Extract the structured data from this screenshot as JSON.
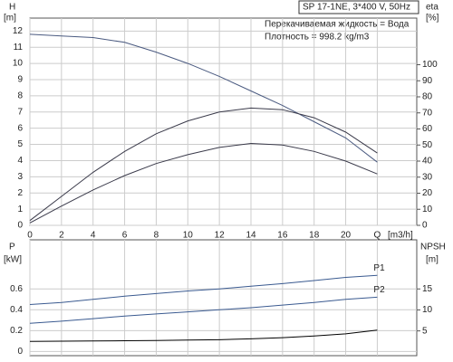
{
  "chart_data": [
    {
      "type": "line",
      "ylabel": "H",
      "yunit": "[m]",
      "y2label": "eta",
      "y2unit": "[%]",
      "info_box": "SP 17-1NE, 3*400 V, 50Hz",
      "notes": [
        "Перекачиваемая жидкость = Вода",
        "Плотность = 998.2 kg/m3"
      ],
      "xunit": "[m3/h]",
      "x": [
        0,
        2,
        4,
        6,
        8,
        10,
        12,
        14,
        16,
        18,
        20,
        22
      ],
      "xlim": [
        0,
        24.5
      ],
      "xticks": [
        0,
        2,
        4,
        6,
        8,
        10,
        12,
        14,
        16,
        18,
        20,
        {
          "value": 22,
          "label": "Q"
        }
      ],
      "ylim": [
        0,
        12.8
      ],
      "yticks": [
        0,
        1,
        2,
        3,
        4,
        5,
        6,
        7,
        8,
        9,
        10,
        11,
        12
      ],
      "y2lim": [
        0,
        129
      ],
      "y2ticks": [
        0,
        10,
        20,
        30,
        40,
        50,
        60,
        70,
        80,
        90,
        100
      ],
      "grid": true,
      "series": [
        {
          "color": "#4a5a80",
          "values": [
            11.8,
            11.7,
            11.6,
            11.3,
            10.7,
            10,
            9.2,
            8.3,
            7.4,
            6.4,
            5.4,
            3.9
          ]
        },
        {
          "color": "#3a3a4a",
          "axis": "y2",
          "values": [
            3,
            18,
            33,
            46,
            57,
            65,
            70.5,
            73,
            72,
            67,
            58,
            45
          ]
        },
        {
          "color": "#3a3a4a",
          "axis": "y2",
          "values": [
            1.5,
            12,
            22,
            31,
            38.5,
            44,
            48.5,
            51,
            50,
            46,
            40,
            32
          ]
        }
      ]
    },
    {
      "type": "line",
      "ylabel": "P",
      "yunit": "[kW]",
      "y2label": "NPSH",
      "y2unit": "[m]",
      "x": [
        0,
        2,
        4,
        6,
        8,
        10,
        12,
        14,
        16,
        18,
        20,
        22
      ],
      "xlim": [
        0,
        24.5
      ],
      "ylim": [
        -0.04,
        1.07
      ],
      "yticks": [
        0,
        0.2,
        0.4,
        0.6
      ],
      "y2lim": [
        -0.9,
        26.7
      ],
      "y2ticks": [
        5,
        10,
        15
      ],
      "grid": true,
      "series": [
        {
          "name": "P1",
          "color": "#3a5a90",
          "values": [
            0.45,
            0.47,
            0.5,
            0.53,
            0.555,
            0.58,
            0.6,
            0.625,
            0.65,
            0.68,
            0.71,
            0.73
          ]
        },
        {
          "name": "P2",
          "color": "#3a5a90",
          "values": [
            0.27,
            0.29,
            0.315,
            0.34,
            0.36,
            0.38,
            0.4,
            0.42,
            0.445,
            0.47,
            0.5,
            0.52
          ]
        },
        {
          "color": "#000000",
          "axis": "y2",
          "values": [
            2.5,
            2.55,
            2.6,
            2.65,
            2.7,
            2.8,
            2.9,
            3.1,
            3.4,
            3.8,
            4.3,
            5.2
          ]
        }
      ]
    }
  ]
}
